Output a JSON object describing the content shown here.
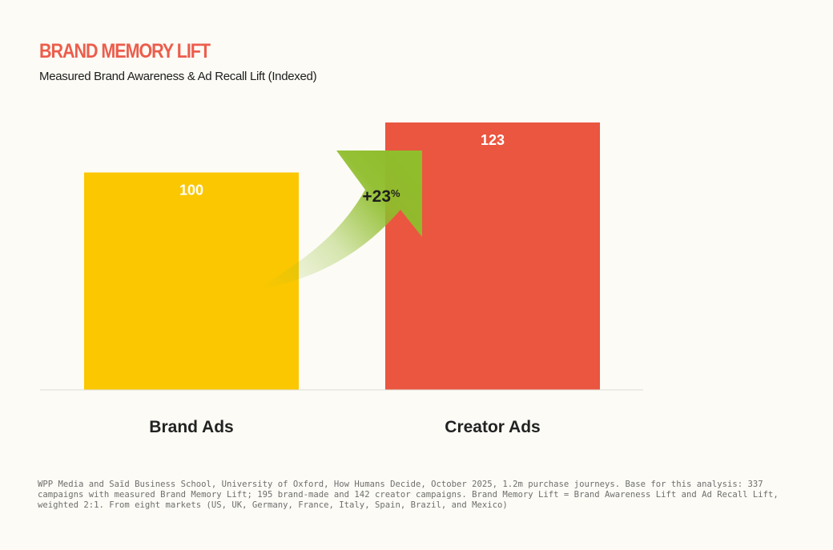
{
  "header": {
    "title": "BRAND MEMORY LIFT",
    "subtitle": "Measured Brand Awareness & Ad Recall Lift (Indexed)"
  },
  "chart_data": {
    "type": "bar",
    "title": "BRAND MEMORY LIFT",
    "subtitle": "Measured Brand Awareness & Ad Recall Lift (Indexed)",
    "categories": [
      "Brand Ads",
      "Creator Ads"
    ],
    "values": [
      100,
      123
    ],
    "data_labels": [
      "100",
      "123"
    ],
    "colors": [
      "#fbc700",
      "#ea5640"
    ],
    "ylim": [
      0,
      123
    ],
    "grid": false,
    "annotation": {
      "text": "+23",
      "suffix": "%",
      "color": "#8fbd2c"
    }
  },
  "footnote": "WPP Media and Saïd Business School, University of Oxford, How Humans Decide, October 2025, 1.2m purchase journeys. Base for this analysis: 337 campaigns with measured Brand Memory Lift; 195 brand-made and 142 creator campaigns. Brand Memory Lift = Brand Awareness Lift and Ad Recall Lift, weighted 2:1. From eight markets (US, UK, Germany, France, Italy, Spain, Brazil, and Mexico)"
}
